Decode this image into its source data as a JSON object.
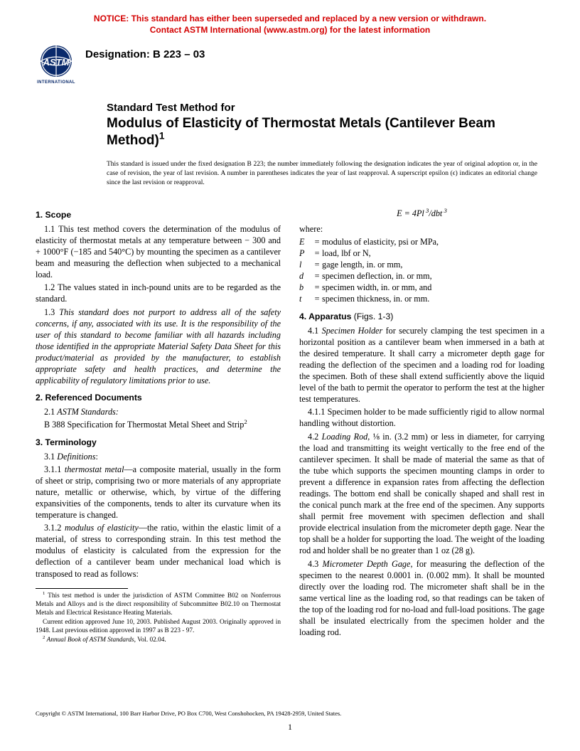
{
  "notice": {
    "line1": "NOTICE: This standard has either been superseded and replaced by a new version or withdrawn.",
    "line2": "Contact ASTM International (www.astm.org) for the latest information",
    "color": "#d40000"
  },
  "logo": {
    "text_top": "ASTM",
    "text_bottom": "INTERNATIONAL",
    "bg": "#0a2a6b",
    "fg": "#ffffff"
  },
  "designation": "Designation: B 223 – 03",
  "title": {
    "line1": "Standard Test Method for",
    "line2": "Modulus of Elasticity of Thermostat Metals (Cantilever Beam Method)",
    "sup": "1"
  },
  "issued": "This standard is issued under the fixed designation B 223; the number immediately following the designation indicates the year of original adoption or, in the case of revision, the year of last revision. A number in parentheses indicates the year of last reapproval. A superscript epsilon (ϵ) indicates an editorial change since the last revision or reapproval.",
  "s1": {
    "head": "1. Scope",
    "p11": "1.1 This test method covers the determination of the modulus of elasticity of thermostat metals at any temperature between − 300 and + 1000°F (−185 and 540°C) by mounting the specimen as a cantilever beam and measuring the deflection when subjected to a mechanical load.",
    "p12": "1.2 The values stated in inch-pound units are to be regarded as the standard.",
    "p13a": "1.3 ",
    "p13b": "This standard does not purport to address all of the safety concerns, if any, associated with its use. It is the responsibility of the user of this standard to become familiar with all hazards including those identified in the appropriate Material Safety Data Sheet for this product/material as provided by the manufacturer, to establish appropriate safety and health practices, and determine the applicability of regulatory limitations prior to use."
  },
  "s2": {
    "head": "2. Referenced Documents",
    "p21a": "2.1 ",
    "p21b": "ASTM Standards:",
    "p22": "B 388 Specification for Thermostat Metal Sheet and Strip",
    "p22sup": "2"
  },
  "s3": {
    "head": "3. Terminology",
    "p31a": "3.1 ",
    "p31b": "Definitions",
    "p31c": ":",
    "p311a": "3.1.1 ",
    "p311b": "thermostat metal",
    "p311c": "—a composite material, usually in the form of sheet or strip, comprising two or more materials of any appropriate nature, metallic or otherwise, which, by virtue of the differing expansivities of the components, tends to alter its curvature when its temperature is changed.",
    "p312a": "3.1.2 ",
    "p312b": "modulus of elasticity",
    "p312c": "—the ratio, within the elastic limit of a material, of stress to corresponding strain. In this test method the modulus of elasticity is calculated from the expression for the deflection of a cantilever beam under mechanical load which is transposed to read as follows:"
  },
  "formula_html": "E = 4Pl<sup>&nbsp;3</sup>/dbt<sup>&nbsp;3</sup>",
  "where": "where:",
  "defs": [
    {
      "s": "E",
      "d": "modulus of elasticity, psi or MPa,"
    },
    {
      "s": "P",
      "d": "load, lbf or N,"
    },
    {
      "s": "l",
      "d": "gage length, in. or mm,"
    },
    {
      "s": "d",
      "d": "specimen deflection, in. or mm,"
    },
    {
      "s": "b",
      "d": "specimen width, in. or mm, and"
    },
    {
      "s": "t",
      "d": "specimen thickness, in. or mm."
    }
  ],
  "s4": {
    "head": "4. Apparatus",
    "figs": " (Figs. 1-3)",
    "p41a": "4.1 ",
    "p41b": "Specimen Holder",
    "p41c": " for securely clamping the test specimen in a horizontal position as a cantilever beam when immersed in a bath at the desired temperature. It shall carry a micrometer depth gage for reading the deflection of the specimen and a loading rod for loading the specimen. Both of these shall extend sufficiently above the liquid level of the bath to permit the operator to perform the test at the higher test temperatures.",
    "p411": "4.1.1 Specimen holder to be made sufficiently rigid to allow normal handling without distortion.",
    "p42a": "4.2 ",
    "p42b": "Loading Rod",
    "p42c": ", ⅛ in. (3.2 mm) or less in diameter, for carrying the load and transmitting its weight vertically to the free end of the cantilever specimen. It shall be made of material the same as that of the tube which supports the specimen mounting clamps in order to prevent a difference in expansion rates from affecting the deflection readings. The bottom end shall be conically shaped and shall rest in the conical punch mark at the free end of the specimen. Any supports shall permit free movement with specimen deflection and shall provide electrical insulation from the micrometer depth gage. Near the top shall be a holder for supporting the load. The weight of the loading rod and holder shall be no greater than 1 oz (28 g).",
    "p43a": "4.3 ",
    "p43b": "Micrometer Depth Gage",
    "p43c": ", for measuring the deflection of the specimen to the nearest 0.0001 in. (0.002 mm). It shall be mounted directly over the loading rod. The micrometer shaft shall be in the same vertical line as the loading rod, so that readings can be taken of the top of the loading rod for no-load and full-load positions. The gage shall be insulated electrically from the specimen holder and the loading rod."
  },
  "footnotes": {
    "f1sup": "1",
    "f1": " This test method is under the jurisdiction of ASTM Committee B02 on Nonferrous Metals and Alloys and is the direct responsibility of Subcommittee B02.10 on Thermostat Metals and Electrical Resistance Heating Materials.",
    "f1b": "Current edition approved June 10, 2003. Published August 2003. Originally approved in 1948. Last previous edition approved in 1997 as B 223 - 97.",
    "f2sup": "2",
    "f2a": " ",
    "f2b": "Annual Book of ASTM Standards",
    "f2c": ", Vol. 02.04."
  },
  "copyright": "Copyright © ASTM International, 100 Barr Harbor Drive, PO Box C700, West Conshohocken, PA 19428-2959, United States.",
  "pagenum": "1"
}
